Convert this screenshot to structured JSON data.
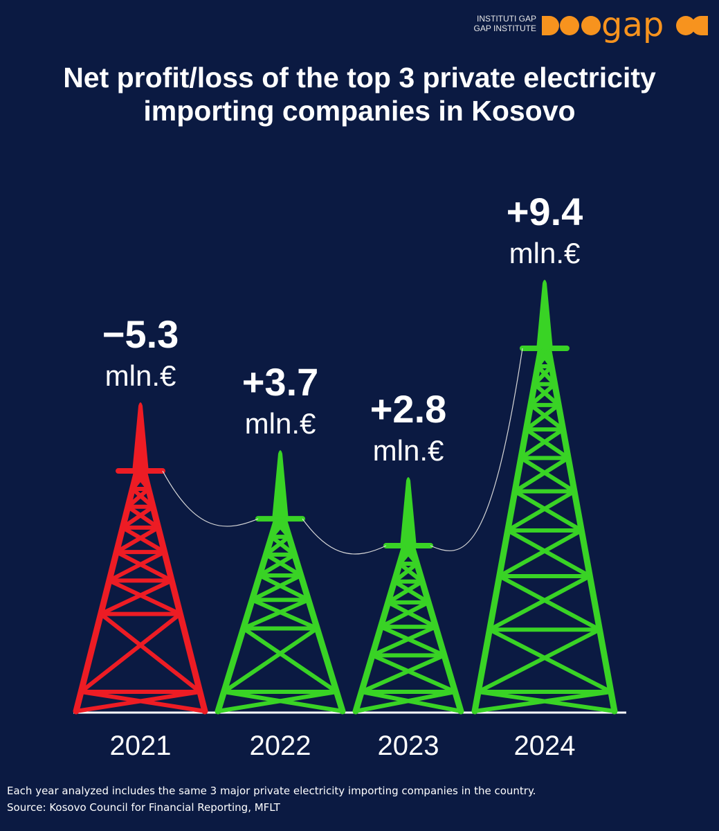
{
  "brand": {
    "line1": "INSTITUTI GAP",
    "line2": "GAP INSTITUTE",
    "wordmark": "gap",
    "color": "#f7931e"
  },
  "title": {
    "line1": "Net profit/loss of the top 3 private electricity",
    "line2": "importing companies in Kosovo"
  },
  "chart_data": {
    "type": "bar",
    "title": "Net profit/loss of the top 3 private electricity importing companies in Kosovo",
    "categories": [
      "2021",
      "2022",
      "2023",
      "2024"
    ],
    "values": [
      -5.3,
      3.7,
      2.8,
      9.4
    ],
    "data_labels": [
      "−5.3",
      "+3.7",
      "+2.8",
      "+9.4"
    ],
    "unit": "mln.€",
    "colors": {
      "negative": "#ed1c24",
      "positive": "#39d325"
    },
    "xlabel": "",
    "ylabel": "",
    "grid": false,
    "legend": "none"
  },
  "footnote": {
    "line1": "Each year analyzed includes the same 3 major private electricity importing companies in the country.",
    "line2": "Source: Kosovo Council for Financial Reporting, MFLT"
  }
}
